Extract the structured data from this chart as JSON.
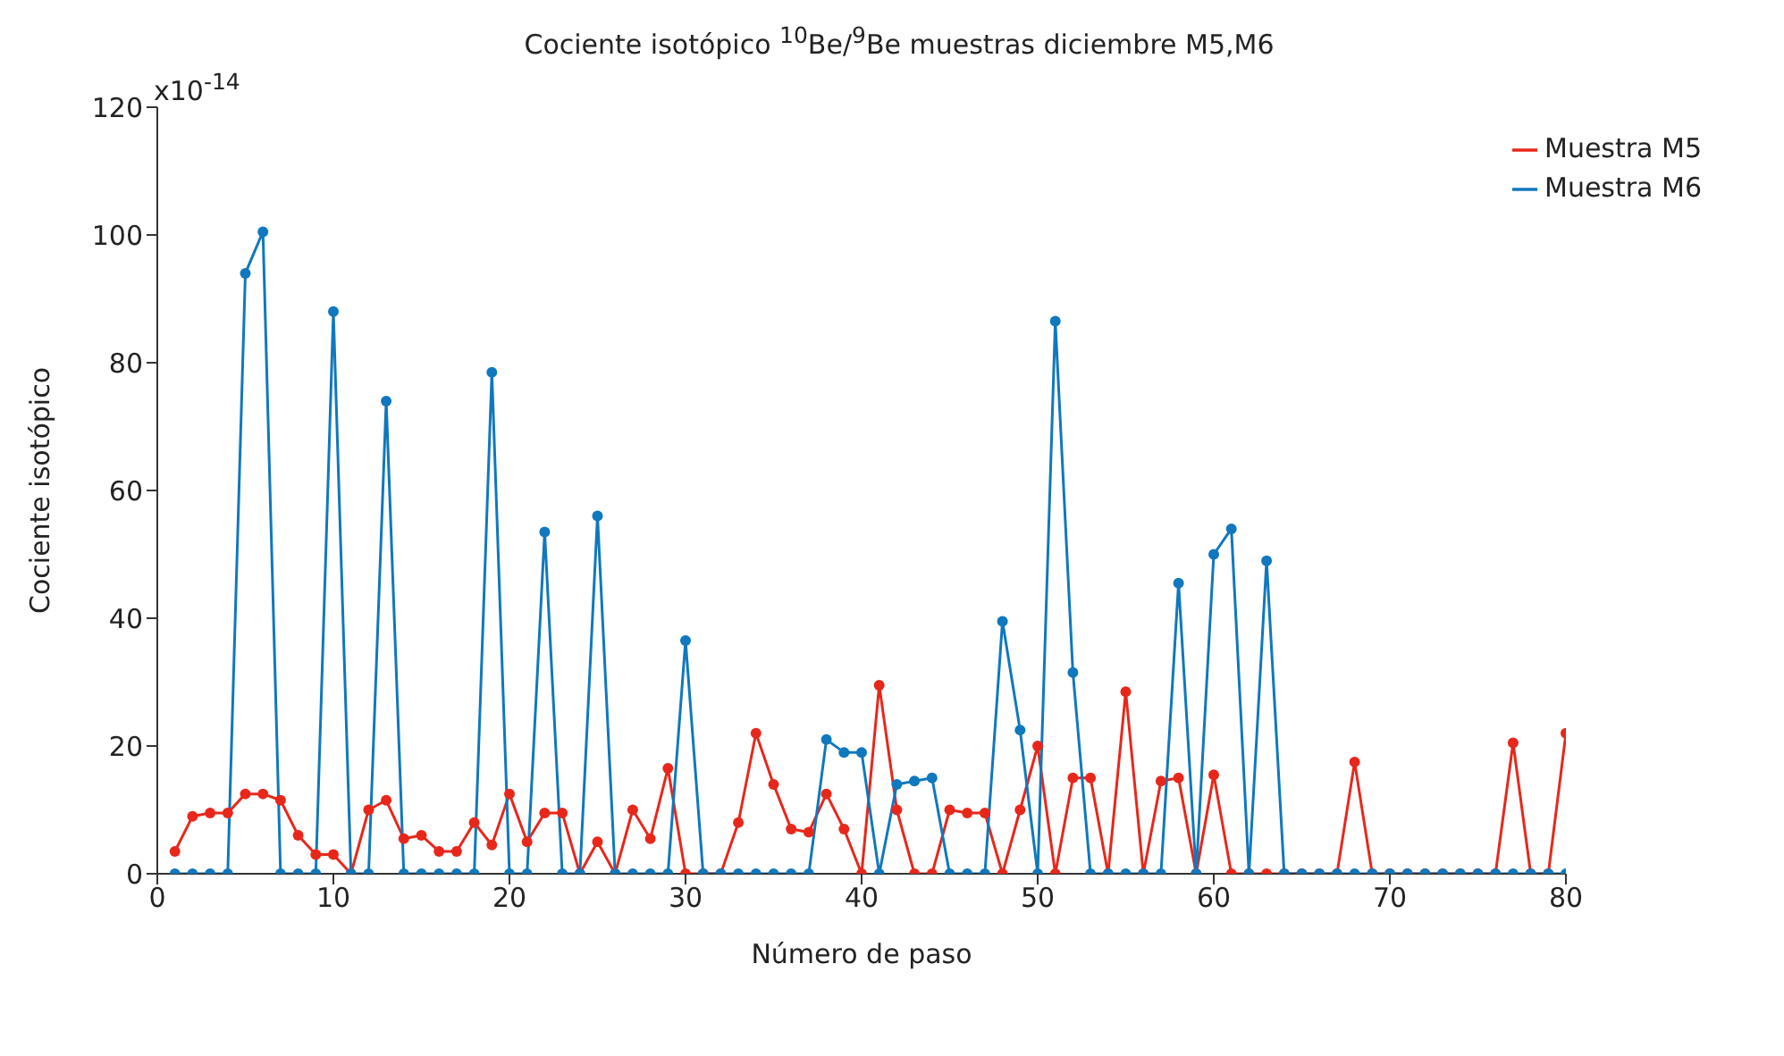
{
  "chart_data": {
    "type": "line",
    "title": "Cociente isotópico $^{10}$Be/$^{9}$Be muestras diciembre M5,M6",
    "xlabel": "Número de paso",
    "ylabel": "Cociente isotópico",
    "annotations": [
      "x10$^{-14}$"
    ],
    "x": [
      1,
      2,
      3,
      4,
      5,
      6,
      7,
      8,
      9,
      10,
      11,
      12,
      13,
      14,
      15,
      16,
      17,
      18,
      19,
      20,
      21,
      22,
      23,
      24,
      25,
      26,
      27,
      28,
      29,
      30,
      31,
      32,
      33,
      34,
      35,
      36,
      37,
      38,
      39,
      40,
      41,
      42,
      43,
      44,
      45,
      46,
      47,
      48,
      49,
      50,
      51,
      52,
      53,
      54,
      55,
      56,
      57,
      58,
      59,
      60,
      61,
      62,
      63,
      64,
      65,
      66,
      67,
      68,
      69,
      70,
      71,
      72,
      73,
      74,
      75,
      76,
      77,
      78,
      79,
      80
    ],
    "series": [
      {
        "name": "Muestra M5",
        "color": "#e8271b",
        "values": [
          3.5,
          9,
          9.5,
          9.5,
          12.5,
          12.5,
          11.5,
          6,
          3,
          3,
          0,
          10,
          11.5,
          5.5,
          6,
          3.5,
          3.5,
          8,
          4.5,
          12.5,
          5,
          9.5,
          9.5,
          0,
          5,
          0,
          10,
          5.5,
          16.5,
          0,
          0,
          0,
          8,
          22,
          14,
          7,
          6.5,
          12.5,
          7,
          0,
          29.5,
          10,
          0,
          0,
          10,
          9.5,
          9.5,
          0,
          10,
          20,
          0,
          15,
          15,
          0,
          28.5,
          0,
          14.5,
          15,
          0,
          15.5,
          0,
          0,
          0,
          0,
          0,
          0,
          0,
          17.5,
          0,
          0,
          0,
          0,
          0,
          0,
          0,
          0,
          20.5,
          0,
          0,
          22
        ]
      },
      {
        "name": "Muestra M6",
        "color": "#0f78be",
        "values": [
          0,
          0,
          0,
          0,
          94,
          100.5,
          0,
          0,
          0,
          88,
          0,
          0,
          74,
          0,
          0,
          0,
          0,
          0,
          78.5,
          0,
          0,
          53.5,
          0,
          0,
          56,
          0,
          0,
          0,
          0,
          36.5,
          0,
          0,
          0,
          0,
          0,
          0,
          0,
          21,
          19,
          19,
          0,
          14,
          14.5,
          15,
          0,
          0,
          0,
          39.5,
          22.5,
          0,
          86.5,
          31.5,
          0,
          0,
          0,
          0,
          0,
          45.5,
          0,
          50,
          54,
          0,
          49,
          0,
          0,
          0,
          0,
          0,
          0,
          0,
          0,
          0,
          0,
          0,
          0,
          0,
          0,
          0,
          0,
          0
        ]
      }
    ],
    "xlim": [
      0,
      80
    ],
    "xticks": [
      0,
      10,
      20,
      30,
      40,
      50,
      60,
      70,
      80
    ],
    "ylim": [
      0,
      120
    ],
    "yticks": [
      0,
      20,
      40,
      60,
      80,
      100,
      120
    ],
    "legend": "top right",
    "marker": "circle",
    "line_style": "solid",
    "grid": false
  }
}
